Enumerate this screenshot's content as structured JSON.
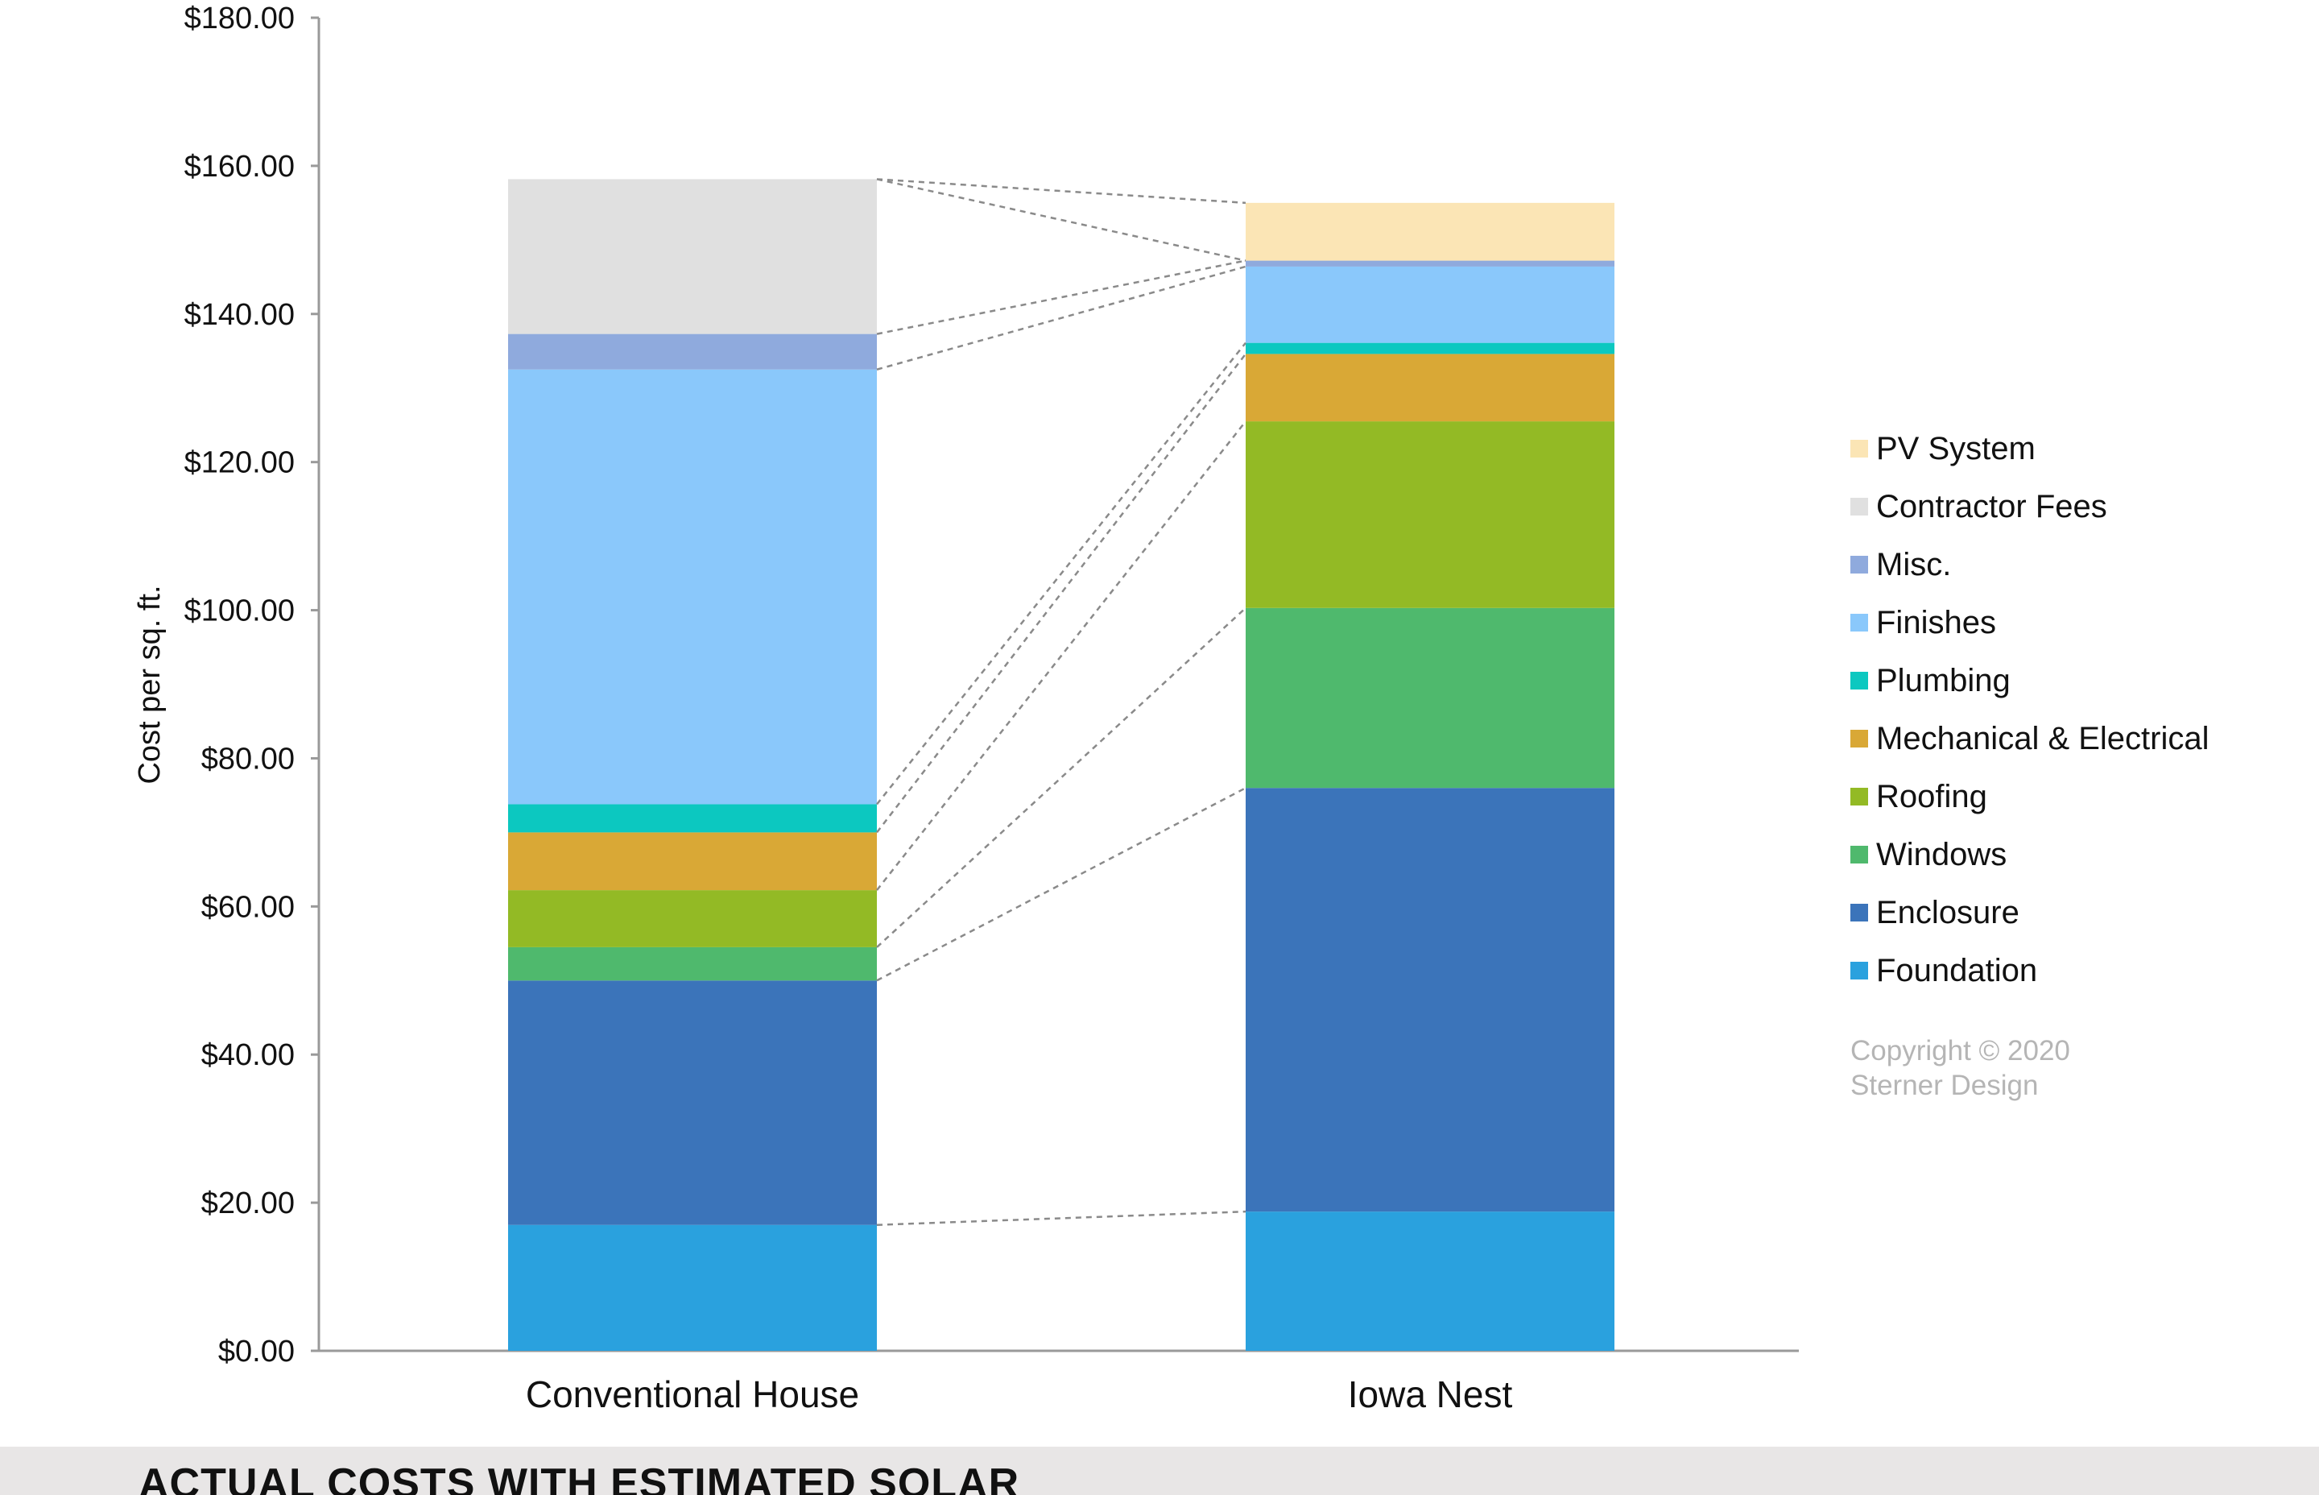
{
  "chart_data": {
    "type": "bar",
    "stacked": true,
    "title": "",
    "xlabel": "",
    "ylabel": "Cost per sq. ft.",
    "ylim": [
      0,
      180
    ],
    "ytick_values": [
      0,
      20,
      40,
      60,
      80,
      100,
      120,
      140,
      160,
      180
    ],
    "ytick_labels": [
      "$0.00",
      "$20.00",
      "$40.00",
      "$60.00",
      "$80.00",
      "$100.00",
      "$120.00",
      "$140.00",
      "$160.00",
      "$180.00"
    ],
    "categories": [
      "Conventional House",
      "Iowa Nest"
    ],
    "series": [
      {
        "name": "Foundation",
        "color": "#2aa1de",
        "values": [
          17.0,
          18.8
        ]
      },
      {
        "name": "Enclosure",
        "color": "#3b74ba",
        "values": [
          33.0,
          57.2
        ]
      },
      {
        "name": "Windows",
        "color": "#4fb96d",
        "values": [
          4.5,
          24.3
        ]
      },
      {
        "name": "Roofing",
        "color": "#93ba25",
        "values": [
          7.7,
          25.2
        ]
      },
      {
        "name": "Mechanical & Electrical",
        "color": "#d9a836",
        "values": [
          7.8,
          9.1
        ]
      },
      {
        "name": "Plumbing",
        "color": "#0cc8c0",
        "values": [
          3.8,
          1.5
        ]
      },
      {
        "name": "Finishes",
        "color": "#8ac8fb",
        "values": [
          58.7,
          10.3
        ]
      },
      {
        "name": "Misc.",
        "color": "#8faadd",
        "values": [
          4.8,
          0.8
        ]
      },
      {
        "name": "Contractor Fees",
        "color": "#e0e0e0",
        "values": [
          20.9,
          0
        ]
      },
      {
        "name": "PV System",
        "color": "#fbe5b5",
        "values": [
          0,
          7.8
        ]
      }
    ],
    "legend_order": [
      "PV System",
      "Contractor Fees",
      "Misc.",
      "Finishes",
      "Plumbing",
      "Mechanical & Electrical",
      "Roofing",
      "Windows",
      "Enclosure",
      "Foundation"
    ],
    "legend_position": "right",
    "grid": false,
    "connector_lines": "dashed"
  },
  "copyright": [
    "Copyright © 2020",
    "Sterner Design"
  ],
  "banner_title": "ACTUAL COSTS WITH ESTIMATED SOLAR"
}
